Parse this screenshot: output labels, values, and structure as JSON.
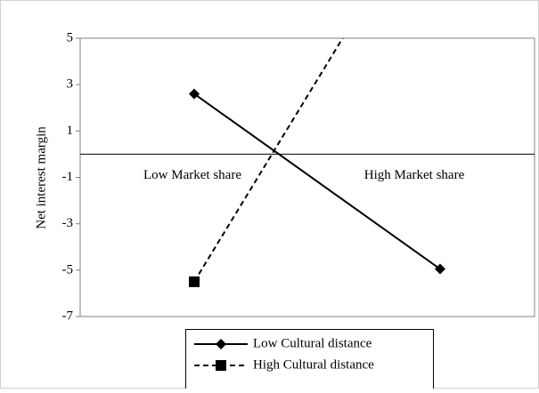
{
  "chart_data": {
    "type": "line",
    "y_label": "Net interest margin",
    "categories": [
      "Low Market share",
      "High Market share"
    ],
    "series": [
      {
        "name": "Low Cultural distance",
        "color": "#000000",
        "dash": "solid",
        "marker": "diamond",
        "values": [
          2.6,
          -4.95
        ]
      },
      {
        "name": "High Cultural distance",
        "color": "#000000",
        "dash": "dashed",
        "marker": "square",
        "values": [
          -5.5,
          11.9
        ]
      }
    ],
    "ylim": [
      -7,
      5
    ],
    "yticks": [
      -7,
      -5,
      -3,
      -1,
      1,
      3,
      5
    ],
    "grid": false
  }
}
